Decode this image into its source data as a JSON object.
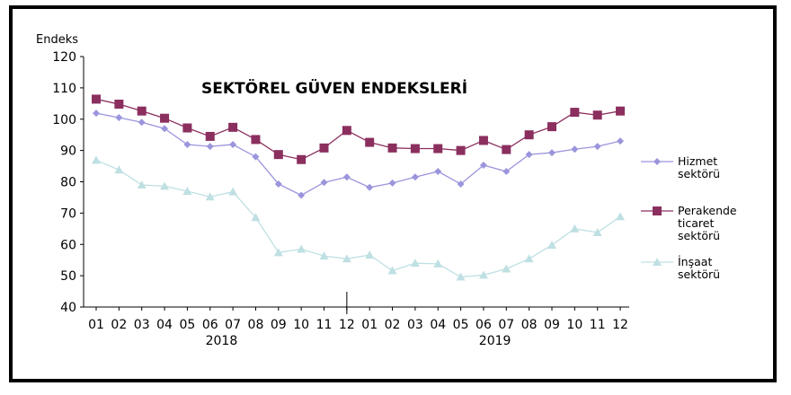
{
  "chart_data": {
    "type": "line",
    "title": "SEKTÖREL GÜVEN ENDEKSLERİ",
    "ylabel": "Endeks",
    "xlabel": "",
    "ylim": [
      40,
      120
    ],
    "yticks": [
      40,
      50,
      60,
      70,
      80,
      90,
      100,
      110,
      120
    ],
    "grid": false,
    "legend": "right",
    "categories": [
      "01",
      "02",
      "03",
      "04",
      "05",
      "06",
      "07",
      "08",
      "09",
      "10",
      "11",
      "12",
      "01",
      "02",
      "03",
      "04",
      "05",
      "06",
      "07",
      "08",
      "09",
      "10",
      "11",
      "12"
    ],
    "year_labels": [
      "2018",
      "2019"
    ],
    "series": [
      {
        "name": "Hizmet sektörü",
        "legend_lines": [
          "Hizmet",
          "sektörü"
        ],
        "color": "#9b95dd",
        "marker": "diamond",
        "values": [
          101.9,
          100.5,
          99.0,
          97.0,
          91.9,
          91.3,
          91.9,
          88.0,
          79.3,
          75.7,
          79.8,
          81.5,
          78.2,
          79.6,
          81.5,
          83.3,
          79.3,
          85.3,
          83.3,
          88.7,
          89.3,
          90.4,
          91.3,
          93.0
        ]
      },
      {
        "name": "Perakende ticaret sektörü",
        "legend_lines": [
          "Perakende",
          "ticaret",
          "sektörü"
        ],
        "color": "#8b2f5f",
        "marker": "square",
        "values": [
          106.4,
          104.8,
          102.6,
          100.3,
          97.2,
          94.5,
          97.4,
          93.5,
          88.7,
          87.1,
          90.8,
          96.4,
          92.6,
          90.8,
          90.6,
          90.6,
          90.0,
          93.2,
          90.3,
          95.0,
          97.6,
          102.2,
          101.3,
          102.6
        ]
      },
      {
        "name": "İnşaat sektörü",
        "legend_lines": [
          "İnşaat",
          "sektörü"
        ],
        "color": "#bfe0e3",
        "marker": "triangle",
        "values": [
          86.9,
          83.8,
          79.0,
          78.6,
          77.0,
          75.2,
          76.8,
          68.6,
          57.4,
          58.5,
          56.3,
          55.4,
          56.6,
          51.6,
          54.0,
          53.8,
          49.6,
          50.2,
          52.2,
          55.4,
          59.8,
          65.0,
          63.8,
          68.9
        ]
      }
    ]
  }
}
